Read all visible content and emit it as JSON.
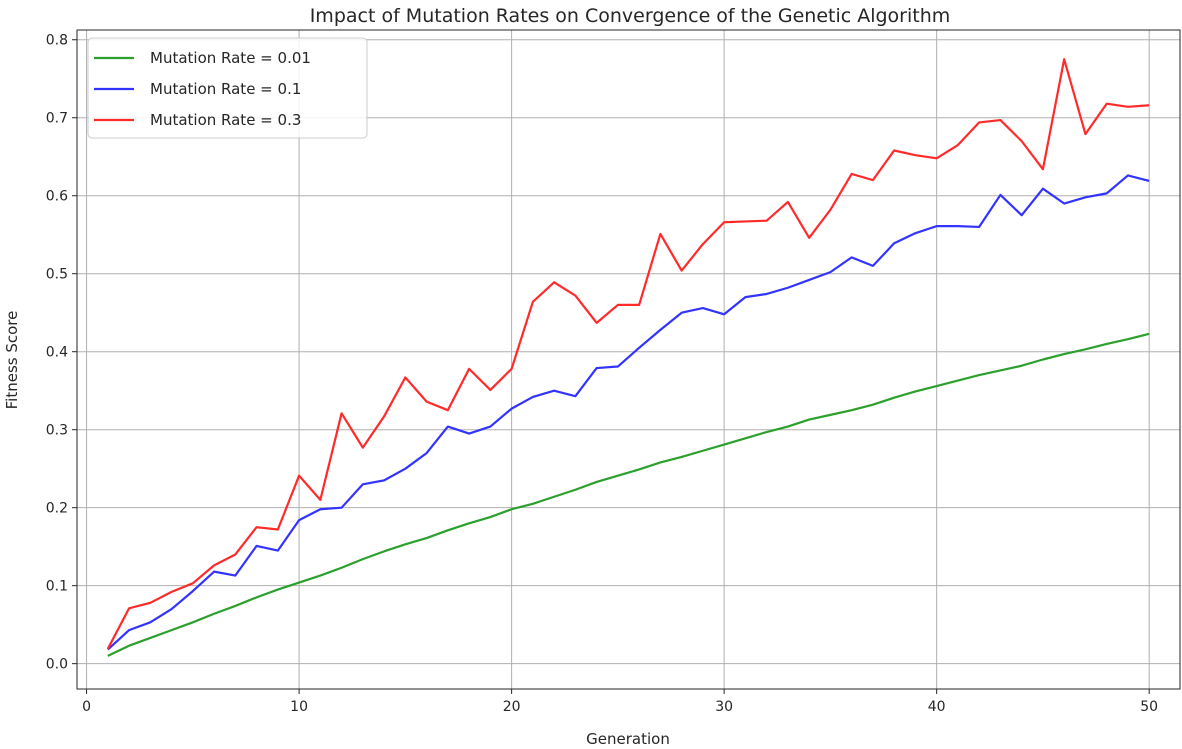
{
  "chart_data": {
    "type": "line",
    "title": "Impact of Mutation Rates on Convergence of the Genetic Algorithm",
    "xlabel": "Generation",
    "ylabel": "Fitness Score",
    "xlim": [
      -0.45,
      51.45
    ],
    "ylim": [
      -0.0325,
      0.8125
    ],
    "xticks": [
      0,
      10,
      20,
      30,
      40,
      50
    ],
    "yticks": [
      0.0,
      0.1,
      0.2,
      0.3,
      0.4,
      0.5,
      0.6,
      0.7,
      0.8
    ],
    "grid": true,
    "legend_position": "top-left",
    "x": [
      1,
      2,
      3,
      4,
      5,
      6,
      7,
      8,
      9,
      10,
      11,
      12,
      13,
      14,
      15,
      16,
      17,
      18,
      19,
      20,
      21,
      22,
      23,
      24,
      25,
      26,
      27,
      28,
      29,
      30,
      31,
      32,
      33,
      34,
      35,
      36,
      37,
      38,
      39,
      40,
      41,
      42,
      43,
      44,
      45,
      46,
      47,
      48,
      49,
      50
    ],
    "series": [
      {
        "name": "Mutation Rate = 0.01",
        "color": "#2ca02c",
        "values": [
          0.01,
          0.023,
          0.033,
          0.043,
          0.053,
          0.064,
          0.074,
          0.085,
          0.095,
          0.104,
          0.113,
          0.123,
          0.134,
          0.144,
          0.153,
          0.161,
          0.171,
          0.18,
          0.188,
          0.198,
          0.205,
          0.214,
          0.223,
          0.233,
          0.241,
          0.249,
          0.258,
          0.265,
          0.273,
          0.281,
          0.289,
          0.297,
          0.304,
          0.313,
          0.319,
          0.325,
          0.332,
          0.341,
          0.349,
          0.356,
          0.363,
          0.37,
          0.376,
          0.382,
          0.39,
          0.397,
          0.403,
          0.41,
          0.416,
          0.423
        ]
      },
      {
        "name": "Mutation Rate = 0.1",
        "color": "#3333ff",
        "values": [
          0.018,
          0.043,
          0.053,
          0.07,
          0.093,
          0.118,
          0.113,
          0.151,
          0.145,
          0.184,
          0.198,
          0.2,
          0.23,
          0.235,
          0.25,
          0.27,
          0.304,
          0.295,
          0.304,
          0.327,
          0.342,
          0.35,
          0.343,
          0.379,
          0.381,
          0.405,
          0.428,
          0.45,
          0.456,
          0.448,
          0.47,
          0.474,
          0.482,
          0.492,
          0.502,
          0.521,
          0.51,
          0.539,
          0.552,
          0.561,
          0.561,
          0.56,
          0.601,
          0.575,
          0.609,
          0.59,
          0.598,
          0.603,
          0.626,
          0.619
        ]
      },
      {
        "name": "Mutation Rate = 0.3",
        "color": "#ff2a2a",
        "values": [
          0.019,
          0.071,
          0.078,
          0.092,
          0.103,
          0.126,
          0.14,
          0.175,
          0.172,
          0.241,
          0.21,
          0.321,
          0.277,
          0.317,
          0.367,
          0.336,
          0.325,
          0.378,
          0.351,
          0.378,
          0.464,
          0.489,
          0.472,
          0.437,
          0.46,
          0.46,
          0.551,
          0.504,
          0.538,
          0.566,
          0.567,
          0.568,
          0.592,
          0.546,
          0.582,
          0.628,
          0.62,
          0.658,
          0.652,
          0.648,
          0.665,
          0.694,
          0.697,
          0.67,
          0.634,
          0.775,
          0.679,
          0.718,
          0.714,
          0.716
        ]
      }
    ]
  }
}
